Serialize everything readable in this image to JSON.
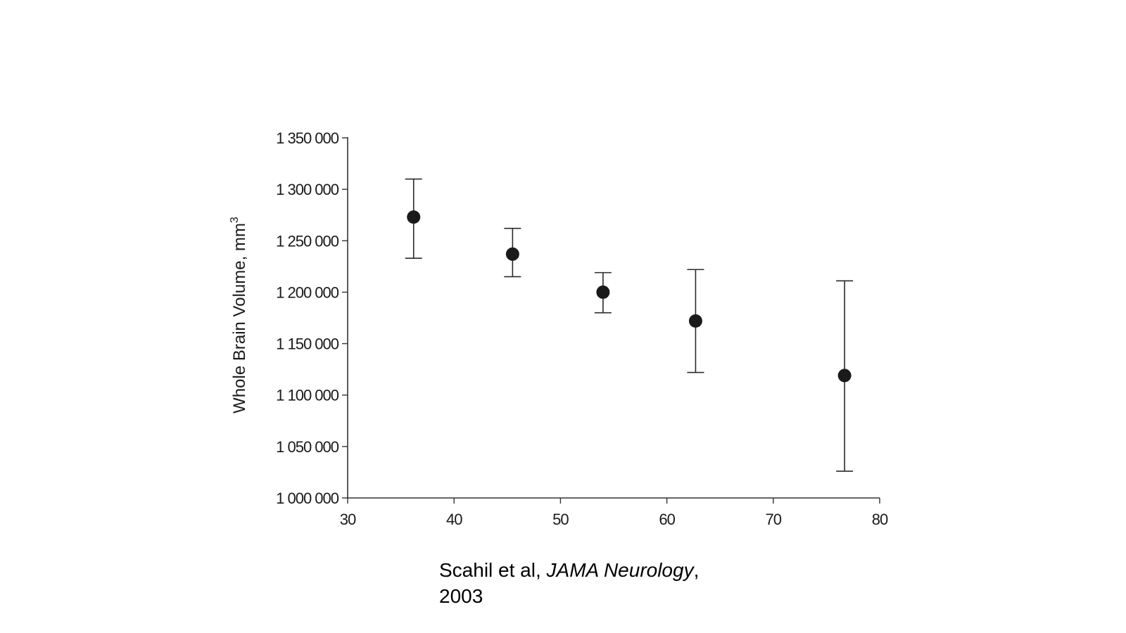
{
  "chart_data": {
    "type": "scatter",
    "title": "",
    "xlabel": "",
    "ylabel": "Whole Brain Volume, mm",
    "ylabel_superscript": "3",
    "xlim": [
      30,
      80
    ],
    "ylim": [
      1000000,
      1350000
    ],
    "x_ticks": [
      30,
      40,
      50,
      60,
      70,
      80
    ],
    "x_tick_labels": [
      "30",
      "40",
      "50",
      "60",
      "70",
      "80"
    ],
    "y_ticks": [
      1000000,
      1050000,
      1100000,
      1150000,
      1200000,
      1250000,
      1300000,
      1350000
    ],
    "y_tick_labels": [
      "1 000 000",
      "1 050 000",
      "1 100 000",
      "1 150 000",
      "1 200 000",
      "1 250 000",
      "1 300 000",
      "1 350 000"
    ],
    "grid": false,
    "legend": "none",
    "points": [
      {
        "x": 36.2,
        "y": 1273000,
        "err_low": 1233000,
        "err_high": 1310000
      },
      {
        "x": 45.5,
        "y": 1237000,
        "err_low": 1215000,
        "err_high": 1262000
      },
      {
        "x": 54.0,
        "y": 1200000,
        "err_low": 1180000,
        "err_high": 1219000
      },
      {
        "x": 62.7,
        "y": 1172000,
        "err_low": 1122000,
        "err_high": 1222000
      },
      {
        "x": 76.7,
        "y": 1119000,
        "err_low": 1026000,
        "err_high": 1211000
      }
    ],
    "point_color": "#1a1a1a",
    "axis_color": "#333333"
  },
  "citation": {
    "authors": "Scahil et al, ",
    "journal": "JAMA Neurology",
    "separator": ",",
    "year": "2003"
  }
}
